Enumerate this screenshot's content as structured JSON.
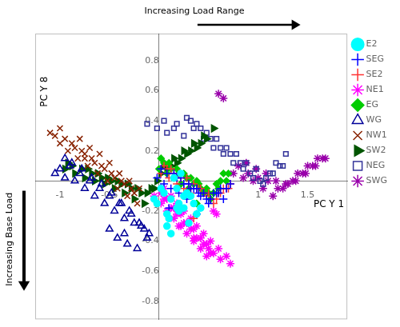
{
  "chart_data": {
    "type": "scatter",
    "xlabel": "PC Y 1",
    "ylabel": "PC Y 8",
    "annotations": [
      "Increasing Load Range",
      "Increasing Base Load"
    ],
    "xlim": [
      -1.25,
      1.9
    ],
    "ylim": [
      -0.92,
      0.98
    ],
    "xticks": [
      -1,
      -0.5,
      1,
      1.5
    ],
    "yticks": [
      -0.8,
      -0.6,
      -0.4,
      -0.2,
      0.2,
      0.4,
      0.6,
      0.8
    ],
    "grid": false,
    "legend": "right",
    "series": [
      {
        "name": "E2",
        "color": "#00FFFF",
        "marker": "circle",
        "x": [
          0.05,
          0.12,
          0.18,
          0.08,
          -0.02,
          0.25,
          0.15,
          0.02,
          0.2,
          0.28,
          0.1,
          0.35,
          0.22,
          0.3,
          0.42,
          0.18,
          0.08,
          0.32,
          0.12,
          -0.05,
          0.38,
          0.25,
          0.2
        ],
        "y": [
          -0.08,
          -0.12,
          -0.18,
          -0.22,
          -0.15,
          -0.1,
          0.02,
          -0.05,
          -0.2,
          -0.08,
          -0.25,
          -0.15,
          0.05,
          -0.28,
          -0.18,
          -0.05,
          -0.3,
          -0.1,
          -0.35,
          -0.12,
          -0.22,
          -0.18,
          -0.15
        ]
      },
      {
        "name": "SEG",
        "color": "#0000FF",
        "marker": "plus",
        "x": [
          -0.02,
          0.05,
          0.12,
          0.2,
          0.28,
          0.35,
          0.42,
          0.5,
          0.58,
          0.65,
          0.08,
          0.18,
          0.25,
          0.32,
          0.4,
          0.48,
          0.55,
          0.62,
          0.02,
          0.15,
          0.22,
          0.3,
          0.38,
          0.45,
          0.52,
          0.6,
          0.68,
          0.72,
          0.1,
          0.38
        ],
        "y": [
          0.02,
          -0.02,
          -0.05,
          -0.08,
          -0.12,
          -0.05,
          -0.1,
          -0.15,
          -0.08,
          -0.12,
          0.05,
          0.02,
          -0.02,
          -0.05,
          -0.08,
          -0.12,
          -0.08,
          -0.05,
          0.08,
          0.05,
          0.02,
          -0.02,
          -0.05,
          -0.08,
          -0.12,
          -0.08,
          -0.05,
          -0.02,
          -0.18,
          -0.22
        ]
      },
      {
        "name": "SE2",
        "color": "#FF3333",
        "marker": "plus",
        "x": [
          0.02,
          0.1,
          0.18,
          0.25,
          0.32,
          0.4,
          0.48,
          0.55,
          0.62,
          0.7,
          0.08,
          0.15,
          0.22,
          0.3,
          0.38,
          0.45,
          0.52,
          0.6,
          0.68,
          0.05,
          0.12,
          0.2,
          0.28,
          0.35,
          0.42,
          0.5,
          0.58,
          0.65,
          0.72,
          0.35
        ],
        "y": [
          0.05,
          0.02,
          -0.02,
          -0.05,
          -0.08,
          -0.05,
          -0.1,
          -0.15,
          -0.08,
          -0.05,
          0.08,
          0.05,
          0.02,
          -0.02,
          -0.05,
          -0.08,
          -0.12,
          -0.08,
          -0.05,
          0.1,
          0.08,
          0.05,
          0.02,
          -0.02,
          -0.05,
          -0.08,
          -0.12,
          -0.05,
          -0.02,
          -0.25
        ]
      },
      {
        "name": "NE1",
        "color": "#FF00FF",
        "marker": "star",
        "x": [
          -0.05,
          0.02,
          0.08,
          0.15,
          0.22,
          0.28,
          0.35,
          0.42,
          0.48,
          0.55,
          0.05,
          0.12,
          0.18,
          0.25,
          0.32,
          0.38,
          0.45,
          0.52,
          0.58,
          0.02,
          0.08,
          0.15,
          0.22,
          0.28,
          0.35,
          0.42,
          0.48,
          0.55,
          0.62,
          0.05,
          0.12,
          0.18,
          0.25,
          0.32,
          0.38,
          0.45,
          0.52,
          0.6,
          0.68,
          0.72,
          0.2,
          0.35,
          0.5
        ],
        "y": [
          -0.1,
          -0.15,
          -0.2,
          -0.25,
          -0.3,
          -0.35,
          -0.4,
          -0.45,
          -0.5,
          -0.2,
          -0.12,
          -0.18,
          -0.22,
          -0.28,
          -0.32,
          -0.38,
          -0.42,
          -0.48,
          -0.22,
          -0.08,
          -0.12,
          -0.18,
          -0.22,
          -0.28,
          -0.32,
          -0.38,
          -0.42,
          -0.48,
          -0.52,
          -0.05,
          -0.1,
          -0.15,
          -0.2,
          -0.25,
          -0.3,
          -0.35,
          -0.4,
          -0.45,
          -0.5,
          -0.55,
          -0.3,
          -0.38,
          -0.45
        ]
      },
      {
        "name": "EG",
        "color": "#00CC00",
        "marker": "diamond",
        "x": [
          0.0,
          0.08,
          0.15,
          0.22,
          0.3,
          0.38,
          0.45,
          0.52,
          0.6,
          0.68,
          0.05,
          0.12,
          0.2,
          0.28,
          0.35,
          0.42,
          0.5,
          0.58,
          0.65,
          0.02,
          0.1,
          0.18,
          0.25,
          0.32,
          0.4,
          0.48,
          0.55,
          0.62,
          0.7,
          0.38
        ],
        "y": [
          0.08,
          0.05,
          0.02,
          -0.02,
          -0.05,
          0.0,
          -0.08,
          -0.12,
          -0.05,
          0.0,
          0.12,
          0.08,
          0.05,
          0.02,
          -0.02,
          -0.05,
          -0.08,
          -0.02,
          0.05,
          0.15,
          0.12,
          0.08,
          0.05,
          0.02,
          -0.02,
          -0.05,
          -0.08,
          0.0,
          0.05,
          -0.15
        ]
      },
      {
        "name": "WG",
        "color": "#000099",
        "marker": "triangle-open",
        "x": [
          -1.05,
          -0.95,
          -0.85,
          -0.75,
          -0.65,
          -0.55,
          -0.45,
          -0.35,
          -0.25,
          -0.15,
          -0.9,
          -0.8,
          -0.7,
          -0.6,
          -0.5,
          -0.4,
          -0.3,
          -0.2,
          -0.1,
          -1.0,
          -0.88,
          -0.78,
          -0.68,
          -0.58,
          -0.48,
          -0.38,
          -0.28,
          -0.18,
          -0.95,
          -0.42,
          -0.32,
          -0.22,
          -0.12,
          -0.5,
          -0.35
        ],
        "y": [
          0.05,
          0.02,
          0.0,
          -0.05,
          -0.1,
          -0.15,
          -0.2,
          -0.25,
          -0.28,
          -0.32,
          0.1,
          0.05,
          0.0,
          -0.05,
          -0.1,
          -0.15,
          -0.2,
          -0.28,
          -0.35,
          0.08,
          0.12,
          0.08,
          0.02,
          -0.02,
          -0.08,
          -0.15,
          -0.22,
          -0.3,
          0.15,
          -0.38,
          -0.42,
          -0.45,
          -0.38,
          -0.32,
          -0.35
        ]
      },
      {
        "name": "NW1",
        "color": "#882200",
        "marker": "x",
        "x": [
          -1.1,
          -1.0,
          -0.92,
          -0.82,
          -0.72,
          -0.62,
          -0.52,
          -0.42,
          -0.32,
          -0.22,
          -0.95,
          -0.85,
          -0.75,
          -0.65,
          -0.55,
          -0.45,
          -0.35,
          -0.25,
          -1.05,
          -0.88,
          -0.78,
          -0.68,
          -0.58,
          -0.48,
          -0.38,
          -0.28,
          -1.0,
          -0.8,
          -0.7,
          -0.6,
          -0.5,
          -0.4,
          -0.3,
          -0.2,
          -0.75
        ],
        "y": [
          0.32,
          0.25,
          0.2,
          0.15,
          0.1,
          0.05,
          0.0,
          -0.05,
          -0.1,
          -0.15,
          0.28,
          0.22,
          0.18,
          0.12,
          0.08,
          0.02,
          -0.02,
          -0.08,
          0.3,
          0.25,
          0.2,
          0.15,
          0.1,
          0.05,
          0.0,
          -0.05,
          0.35,
          0.28,
          0.22,
          0.18,
          0.12,
          0.05,
          0.0,
          -0.05,
          0.15
        ]
      },
      {
        "name": "SW2",
        "color": "#005500",
        "marker": "triangle-right",
        "x": [
          -0.95,
          -0.85,
          -0.75,
          -0.65,
          -0.55,
          -0.45,
          -0.35,
          -0.25,
          -0.15,
          -0.05,
          0.05,
          0.15,
          0.25,
          0.35,
          0.45,
          0.55,
          -0.88,
          -0.78,
          -0.68,
          -0.58,
          -0.48,
          -0.38,
          -0.28,
          -0.18,
          -0.08,
          0.02,
          0.12,
          0.22,
          0.32,
          0.42,
          -0.92,
          -0.72,
          -0.62,
          -0.52,
          -0.42,
          -0.32,
          -0.22,
          -0.12,
          -0.02,
          0.08,
          0.18,
          0.28,
          0.38,
          0.48
        ],
        "y": [
          0.08,
          0.05,
          0.02,
          0.0,
          -0.02,
          -0.05,
          -0.08,
          -0.12,
          -0.15,
          -0.05,
          0.1,
          0.15,
          0.2,
          0.25,
          0.3,
          0.35,
          0.1,
          0.08,
          0.05,
          0.02,
          0.0,
          -0.02,
          -0.05,
          -0.08,
          -0.05,
          0.05,
          0.1,
          0.15,
          0.2,
          0.25,
          0.12,
          0.08,
          0.05,
          0.02,
          0.0,
          -0.02,
          -0.05,
          -0.08,
          0.0,
          0.08,
          0.12,
          0.18,
          0.22,
          0.28
        ]
      },
      {
        "name": "NEG",
        "color": "#333399",
        "marker": "square-open",
        "x": [
          -0.12,
          -0.02,
          0.08,
          0.18,
          0.28,
          0.38,
          0.48,
          0.58,
          0.68,
          0.78,
          0.88,
          0.98,
          1.08,
          1.18,
          1.28,
          0.05,
          0.15,
          0.25,
          0.35,
          0.45,
          0.55,
          0.65,
          0.75,
          0.85,
          0.95,
          1.05,
          1.15,
          1.25,
          0.32,
          0.42,
          0.52,
          0.62,
          0.72,
          0.82,
          0.92,
          1.02,
          1.12,
          1.22
        ],
        "y": [
          0.38,
          0.35,
          0.32,
          0.38,
          0.42,
          0.38,
          0.32,
          0.28,
          0.22,
          0.18,
          0.12,
          0.08,
          0.02,
          0.12,
          0.18,
          0.4,
          0.35,
          0.3,
          0.35,
          0.28,
          0.22,
          0.18,
          0.12,
          0.08,
          0.02,
          -0.02,
          0.05,
          0.1,
          0.4,
          0.35,
          0.28,
          0.22,
          0.18,
          0.12,
          0.05,
          0.0,
          0.05,
          0.1
        ]
      },
      {
        "name": "SWG",
        "color": "#9900AA",
        "marker": "star",
        "x": [
          0.75,
          0.85,
          0.95,
          1.05,
          1.15,
          1.25,
          1.35,
          1.45,
          1.55,
          1.65,
          0.8,
          0.9,
          1.0,
          1.1,
          1.2,
          1.3,
          1.4,
          1.5,
          1.6,
          0.88,
          0.98,
          1.08,
          1.18,
          1.28,
          1.38,
          1.48,
          1.58,
          1.68,
          0.6,
          0.65
        ],
        "y": [
          0.05,
          0.02,
          0.0,
          -0.05,
          -0.1,
          -0.05,
          0.0,
          0.05,
          0.1,
          0.15,
          0.1,
          0.05,
          0.02,
          0.0,
          -0.05,
          -0.02,
          0.05,
          0.1,
          0.15,
          0.12,
          0.08,
          0.05,
          0.0,
          -0.02,
          0.0,
          0.05,
          0.1,
          0.15,
          0.58,
          0.55
        ]
      }
    ]
  }
}
